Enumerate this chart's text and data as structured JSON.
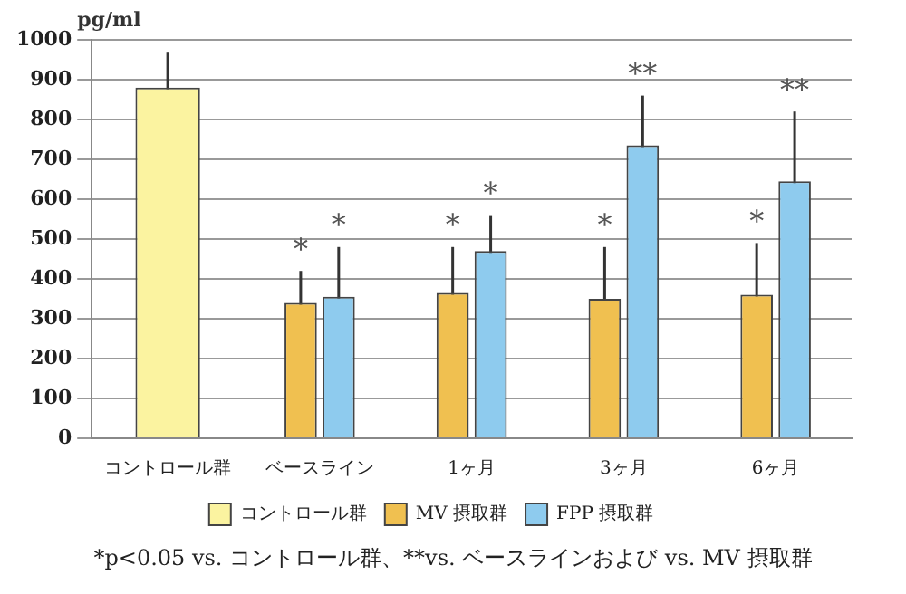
{
  "chart_data": {
    "type": "bar",
    "ylabel": "pg/ml",
    "categories": [
      "コントロール群",
      "ベースライン",
      "1ヶ月",
      "3ヶ月",
      "6ヶ月"
    ],
    "series": [
      {
        "name": "コントロール群",
        "color": "#fbf3a0",
        "values": [
          880,
          null,
          null,
          null,
          null
        ],
        "errors": [
          90,
          null,
          null,
          null,
          null
        ]
      },
      {
        "name": "MV 摂取群",
        "color": "#f0c050",
        "values": [
          null,
          340,
          365,
          350,
          360
        ],
        "errors": [
          null,
          80,
          115,
          130,
          130
        ]
      },
      {
        "name": "FPP 摂取群",
        "color": "#8ecbee",
        "values": [
          null,
          355,
          470,
          735,
          645
        ],
        "errors": [
          null,
          125,
          90,
          125,
          175
        ]
      }
    ],
    "ylim": [
      0,
      1000
    ],
    "yticks": [
      0,
      100,
      200,
      300,
      400,
      500,
      600,
      700,
      800,
      900,
      1000
    ],
    "grid": "y",
    "legend": "bottom",
    "annotations": [
      {
        "text": "*",
        "x": "ベースライン",
        "y": 340
      },
      {
        "text": "*",
        "x": "ベースライン",
        "y": 355
      },
      {
        "text": "*",
        "x": "1ヶ月",
        "y": 365
      },
      {
        "text": "*",
        "x": "1ヶ月",
        "y": 470
      },
      {
        "text": "*",
        "x": "3ヶ月",
        "y": 350
      },
      {
        "text": "**",
        "x": "3ヶ月",
        "y": 735
      },
      {
        "text": "*",
        "x": "6ヶ月",
        "y": 360
      },
      {
        "text": "**",
        "x": "6ヶ月",
        "y": 645
      },
      "*p<0.05 vs. コントロール群、**vs. ベースラインおよび vs. MV 摂取群"
    ]
  }
}
